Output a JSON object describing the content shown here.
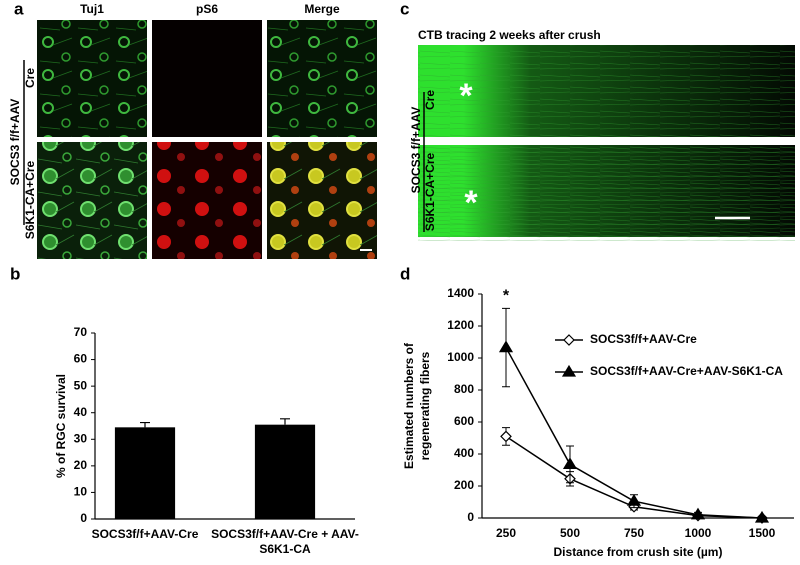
{
  "panel_a": {
    "label": "a",
    "columns": [
      "Tuj1",
      "pS6",
      "Merge"
    ],
    "group_label": "SOCS3 f/f+AAV",
    "rows": [
      "Cre",
      "S6K1-CA+Cre"
    ]
  },
  "panel_c": {
    "label": "c",
    "title": "CTB tracing 2 weeks after crush",
    "group_label": "SOCS3 f/f+AAV",
    "rows": [
      "Cre",
      "S6K1-CA+Cre"
    ],
    "markers": [
      "*",
      "*"
    ]
  },
  "chart_data": [
    {
      "panel_label": "b",
      "type": "bar",
      "ylabel": "%  of RGC survival",
      "categories": [
        "SOCS3f/f+AAV-Cre",
        "SOCS3f/f+AAV-Cre + AAV-S6K1-CA"
      ],
      "values": [
        34.5,
        35.5
      ],
      "errors": [
        1.8,
        2.2
      ],
      "color": "#000000",
      "ylim": [
        0,
        70
      ],
      "yticks": [
        0,
        10,
        20,
        30,
        40,
        50,
        60,
        70
      ]
    },
    {
      "panel_label": "d",
      "type": "line",
      "xlabel": "Distance from crush site (µm)",
      "ylabel": [
        "Estimated numbers of",
        "regenerating fibers"
      ],
      "categories": [
        "250",
        "500",
        "750",
        "1000",
        "1500"
      ],
      "series": [
        {
          "name": "SOCS3f/f+AAV-Cre",
          "color": "#000000",
          "marker": "diamond",
          "values": [
            510,
            245,
            70,
            15,
            0
          ],
          "errors": [
            55,
            45,
            20,
            8,
            0
          ]
        },
        {
          "name": "SOCS3f/f+AAV-Cre+AAV-S6K1-CA",
          "color": "#000000",
          "marker": "triangle",
          "values": [
            1065,
            335,
            105,
            20,
            0
          ],
          "errors": [
            245,
            115,
            40,
            15,
            0
          ]
        }
      ],
      "ylim": [
        0,
        1400
      ],
      "yticks": [
        0,
        200,
        400,
        600,
        800,
        1000,
        1200,
        1400
      ],
      "annotations": [
        {
          "text": "*",
          "category": "250"
        }
      ]
    }
  ]
}
